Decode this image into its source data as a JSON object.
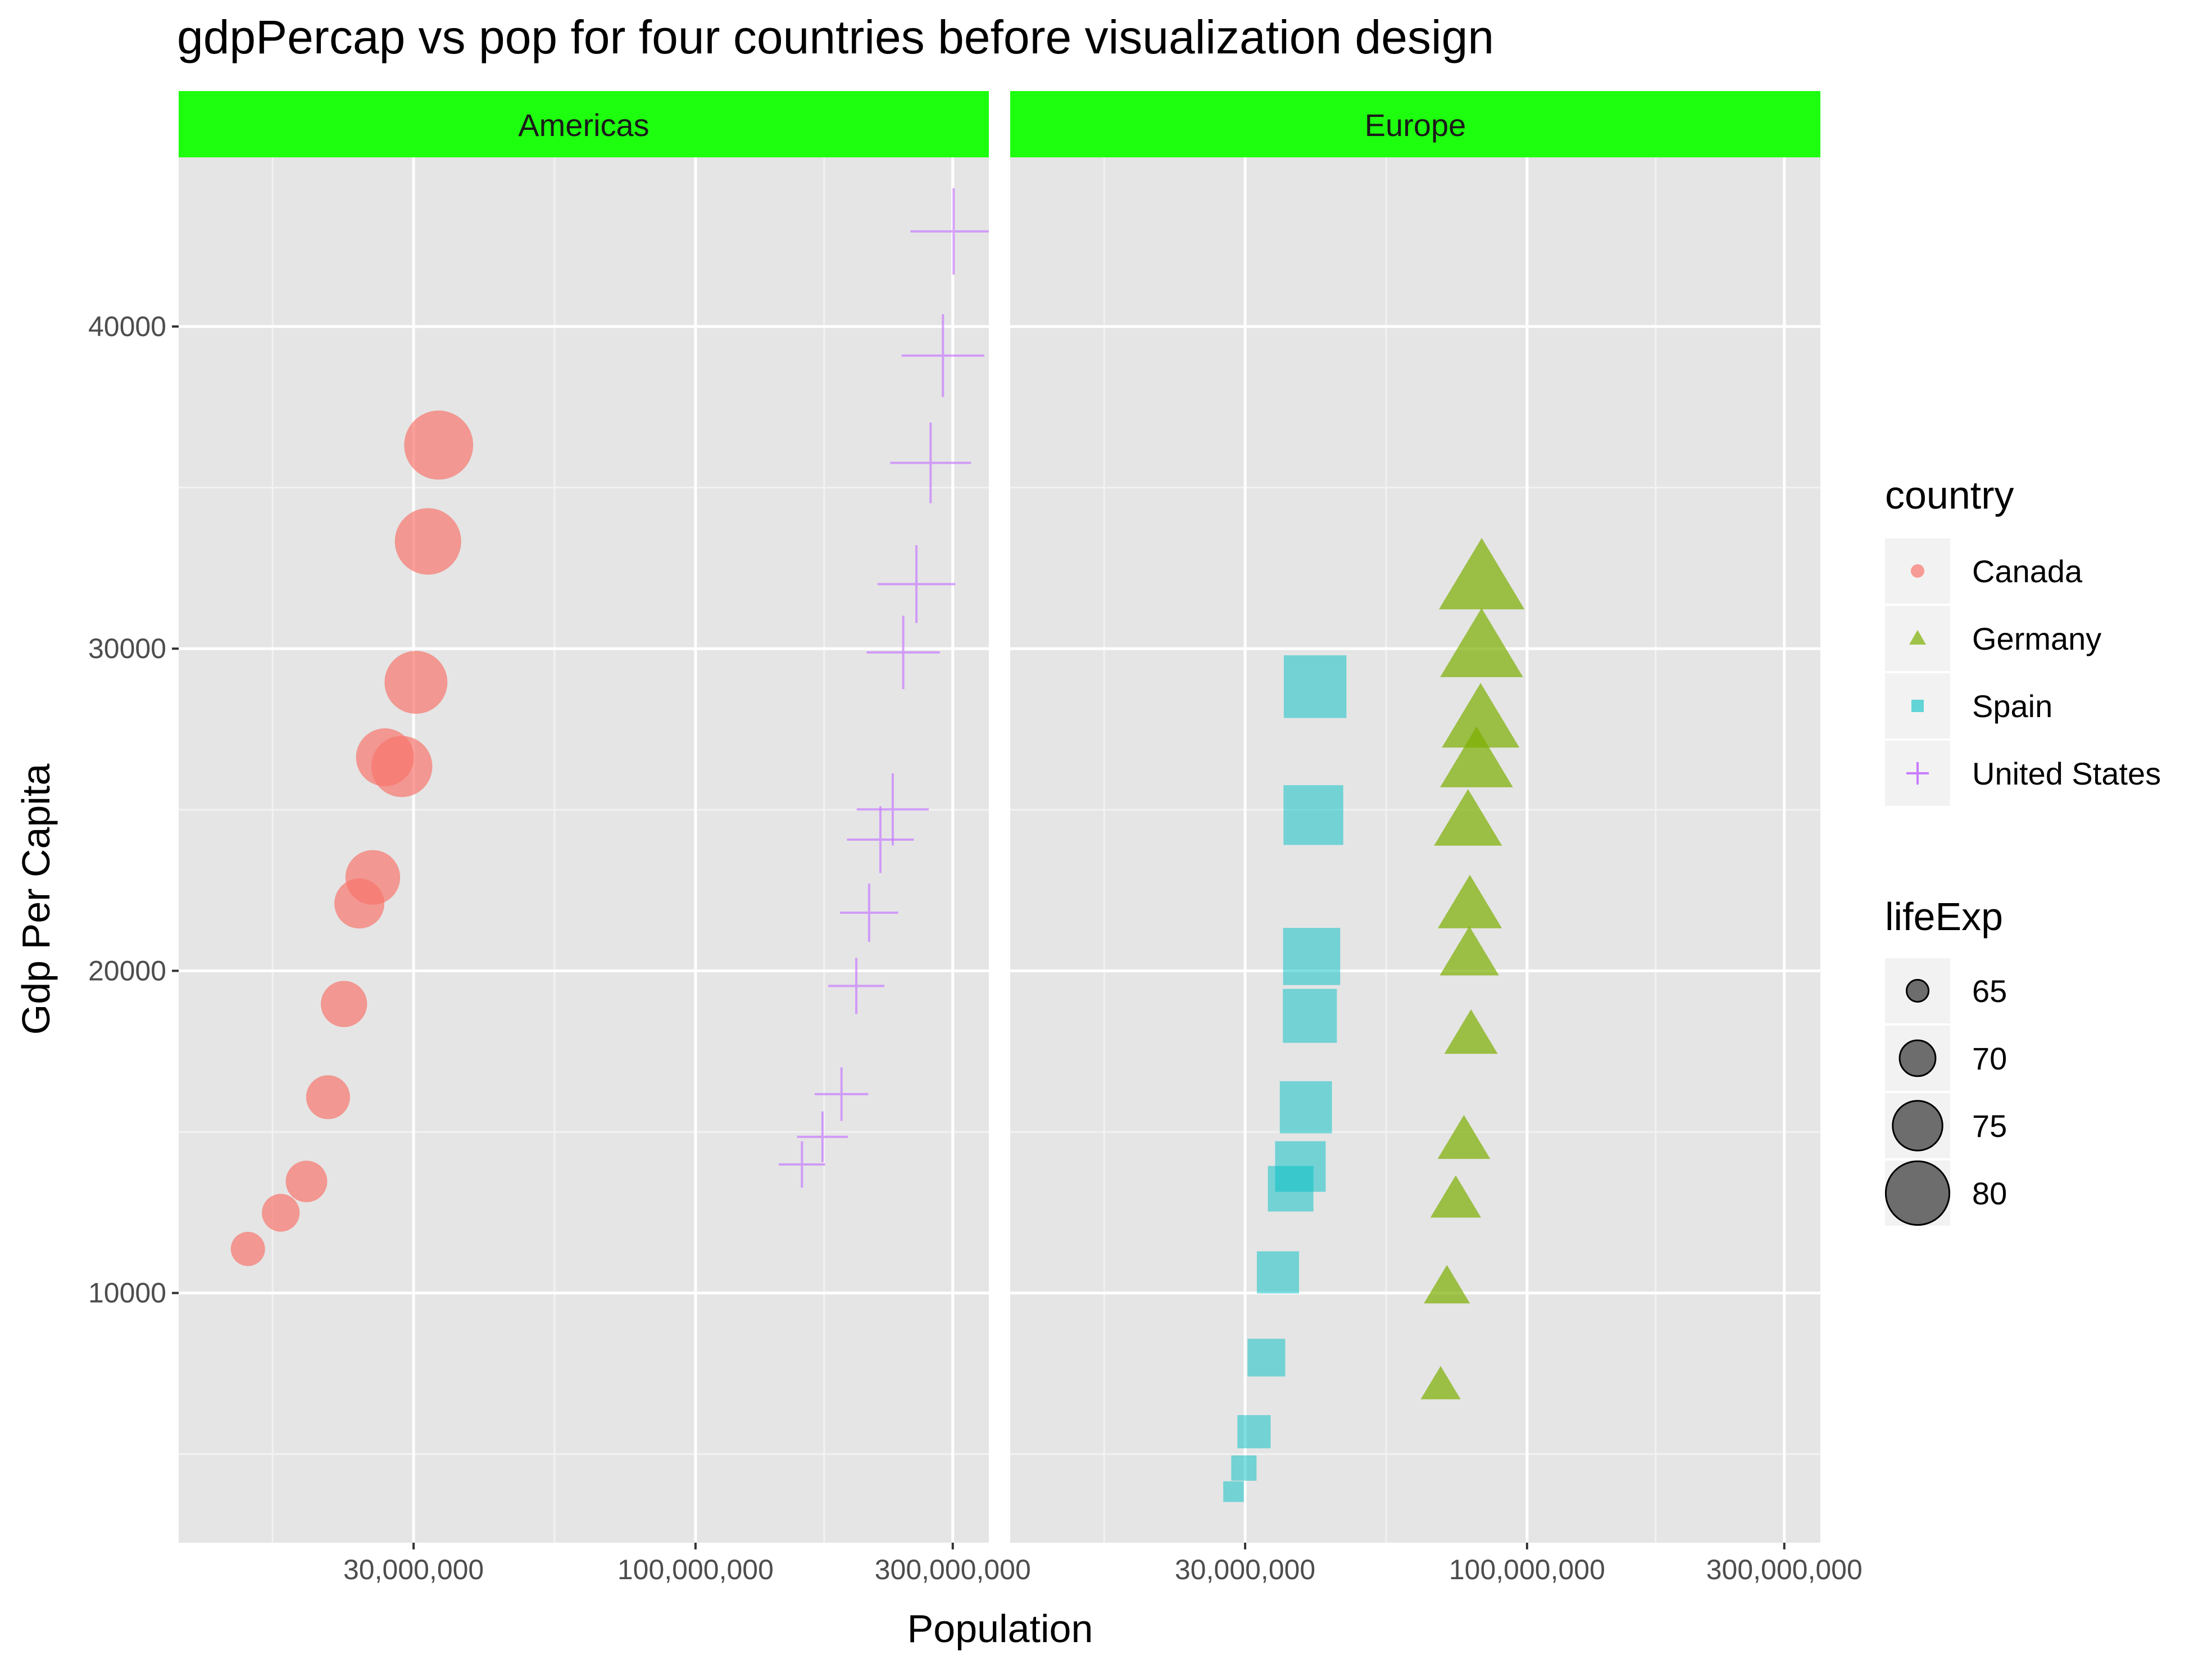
{
  "chart_data": {
    "type": "scatter",
    "title": "gdpPercap vs pop for four countries before visualization design",
    "xlabel": "Population",
    "ylabel": "Gdp Per Capita",
    "x_scale": "log10",
    "x_ticks": [
      {
        "value": 30000000,
        "label": "30,000,000"
      },
      {
        "value": 100000000,
        "label": "100,000,000"
      },
      {
        "value": 300000000,
        "label": "300,000,000"
      }
    ],
    "y_ticks": [
      {
        "value": 10000,
        "label": "10000"
      },
      {
        "value": 20000,
        "label": "20000"
      },
      {
        "value": 30000,
        "label": "30000"
      },
      {
        "value": 40000,
        "label": "40000"
      }
    ],
    "grid": true,
    "strip_color": "#1eff0f",
    "legend_position": "right",
    "facets": [
      {
        "label": "Americas",
        "series": [
          {
            "name": "Canada",
            "color": "#f8766d",
            "shape": "circle",
            "points": [
              {
                "x": 14785584,
                "y": 11367,
                "lifeExp": 68.8
              },
              {
                "x": 17010154,
                "y": 12490,
                "lifeExp": 70.0
              },
              {
                "x": 18985849,
                "y": 13462,
                "lifeExp": 71.3
              },
              {
                "x": 20819767,
                "y": 16077,
                "lifeExp": 72.1
              },
              {
                "x": 22284500,
                "y": 18971,
                "lifeExp": 72.9
              },
              {
                "x": 23796400,
                "y": 22091,
                "lifeExp": 74.2
              },
              {
                "x": 25201900,
                "y": 22899,
                "lifeExp": 75.8
              },
              {
                "x": 26549700,
                "y": 26627,
                "lifeExp": 76.9
              },
              {
                "x": 28523502,
                "y": 26343,
                "lifeExp": 78.0
              },
              {
                "x": 30305843,
                "y": 28955,
                "lifeExp": 78.6
              },
              {
                "x": 31902268,
                "y": 33329,
                "lifeExp": 79.8
              },
              {
                "x": 33390141,
                "y": 36319,
                "lifeExp": 80.7
              }
            ]
          },
          {
            "name": "United States",
            "color": "#c77cff",
            "shape": "plus",
            "points": [
              {
                "x": 157553000,
                "y": 13990,
                "lifeExp": 68.4
              },
              {
                "x": 171984000,
                "y": 14847,
                "lifeExp": 69.5
              },
              {
                "x": 186538000,
                "y": 16173,
                "lifeExp": 70.2
              },
              {
                "x": 198712000,
                "y": 19530,
                "lifeExp": 70.8
              },
              {
                "x": 209896000,
                "y": 21806,
                "lifeExp": 71.3
              },
              {
                "x": 220239000,
                "y": 24073,
                "lifeExp": 73.4
              },
              {
                "x": 232187835,
                "y": 25010,
                "lifeExp": 74.7
              },
              {
                "x": 242803533,
                "y": 29884,
                "lifeExp": 75.0
              },
              {
                "x": 256894189,
                "y": 32004,
                "lifeExp": 76.1
              },
              {
                "x": 272911760,
                "y": 35767,
                "lifeExp": 76.8
              },
              {
                "x": 287675526,
                "y": 39097,
                "lifeExp": 77.3
              },
              {
                "x": 301139947,
                "y": 42952,
                "lifeExp": 78.2
              }
            ]
          }
        ]
      },
      {
        "label": "Europe",
        "series": [
          {
            "name": "Germany",
            "color": "#7cae00",
            "shape": "triangle",
            "points": [
              {
                "x": 69145952,
                "y": 7144,
                "lifeExp": 67.5
              },
              {
                "x": 71019069,
                "y": 10188,
                "lifeExp": 69.1
              },
              {
                "x": 73739117,
                "y": 12902,
                "lifeExp": 70.3
              },
              {
                "x": 76368453,
                "y": 14746,
                "lifeExp": 70.8
              },
              {
                "x": 78717088,
                "y": 18016,
                "lifeExp": 71.0
              },
              {
                "x": 78160773,
                "y": 20513,
                "lifeExp": 72.5
              },
              {
                "x": 78335266,
                "y": 22032,
                "lifeExp": 73.8
              },
              {
                "x": 77718298,
                "y": 24639,
                "lifeExp": 74.8
              },
              {
                "x": 80597764,
                "y": 26505,
                "lifeExp": 76.1
              },
              {
                "x": 82011073,
                "y": 27789,
                "lifeExp": 77.3
              },
              {
                "x": 82350671,
                "y": 30036,
                "lifeExp": 78.7
              },
              {
                "x": 82400996,
                "y": 32170,
                "lifeExp": 79.4
              }
            ]
          },
          {
            "name": "Spain",
            "color": "#00bfc4",
            "shape": "square",
            "points": [
              {
                "x": 28549870,
                "y": 3834,
                "lifeExp": 64.9
              },
              {
                "x": 29841614,
                "y": 4565,
                "lifeExp": 66.7
              },
              {
                "x": 31158061,
                "y": 5694,
                "lifeExp": 69.7
              },
              {
                "x": 32850275,
                "y": 7993,
                "lifeExp": 71.4
              },
              {
                "x": 34513161,
                "y": 10639,
                "lifeExp": 73.1
              },
              {
                "x": 36439000,
                "y": 13237,
                "lifeExp": 74.4
              },
              {
                "x": 37983310,
                "y": 13926,
                "lifeExp": 76.3
              },
              {
                "x": 38880702,
                "y": 15765,
                "lifeExp": 76.9
              },
              {
                "x": 39549438,
                "y": 18603,
                "lifeExp": 77.6
              },
              {
                "x": 39855442,
                "y": 20445,
                "lifeExp": 78.8
              },
              {
                "x": 40152517,
                "y": 24835,
                "lifeExp": 79.8
              },
              {
                "x": 40448191,
                "y": 28821,
                "lifeExp": 80.9
              }
            ]
          }
        ]
      }
    ],
    "legend_country": {
      "title": "country",
      "entries": [
        {
          "name": "Canada",
          "color": "#f8766d",
          "shape": "circle"
        },
        {
          "name": "Germany",
          "color": "#7cae00",
          "shape": "triangle"
        },
        {
          "name": "Spain",
          "color": "#00bfc4",
          "shape": "square"
        },
        {
          "name": "United States",
          "color": "#c77cff",
          "shape": "plus"
        }
      ]
    },
    "legend_size": {
      "title": "lifeExp",
      "entries": [
        {
          "value": 65,
          "label": "65"
        },
        {
          "value": 70,
          "label": "70"
        },
        {
          "value": 75,
          "label": "75"
        },
        {
          "value": 80,
          "label": "80"
        }
      ]
    }
  }
}
